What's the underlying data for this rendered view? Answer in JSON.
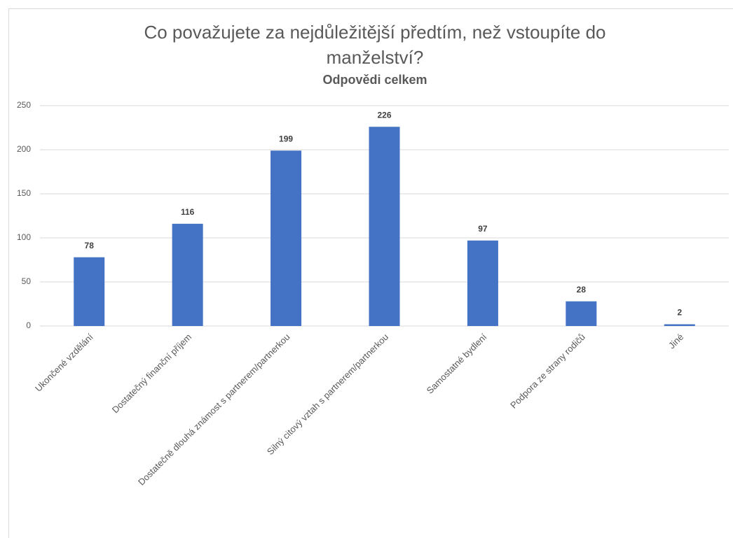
{
  "chart_data": {
    "type": "bar",
    "title": "Co považujete za nejdůležitější předtím, než vstoupíte do manželství?",
    "subtitle": "Odpovědi celkem",
    "categories": [
      "Ukončené vzdělání",
      "Dostatečný finanční příjem",
      "Dostatečně dlouhá známost s partnerem/partnerkou",
      "Silný citový vztah s partnerem/partnerkou",
      "Samostatné bydlení",
      "Podpora ze strany rodičů",
      "Jiné"
    ],
    "values": [
      78,
      116,
      199,
      226,
      97,
      28,
      2
    ],
    "color": "#4472c4",
    "ylim": [
      0,
      250
    ],
    "yticks": [
      0,
      50,
      100,
      150,
      200,
      250
    ],
    "grid": true
  }
}
